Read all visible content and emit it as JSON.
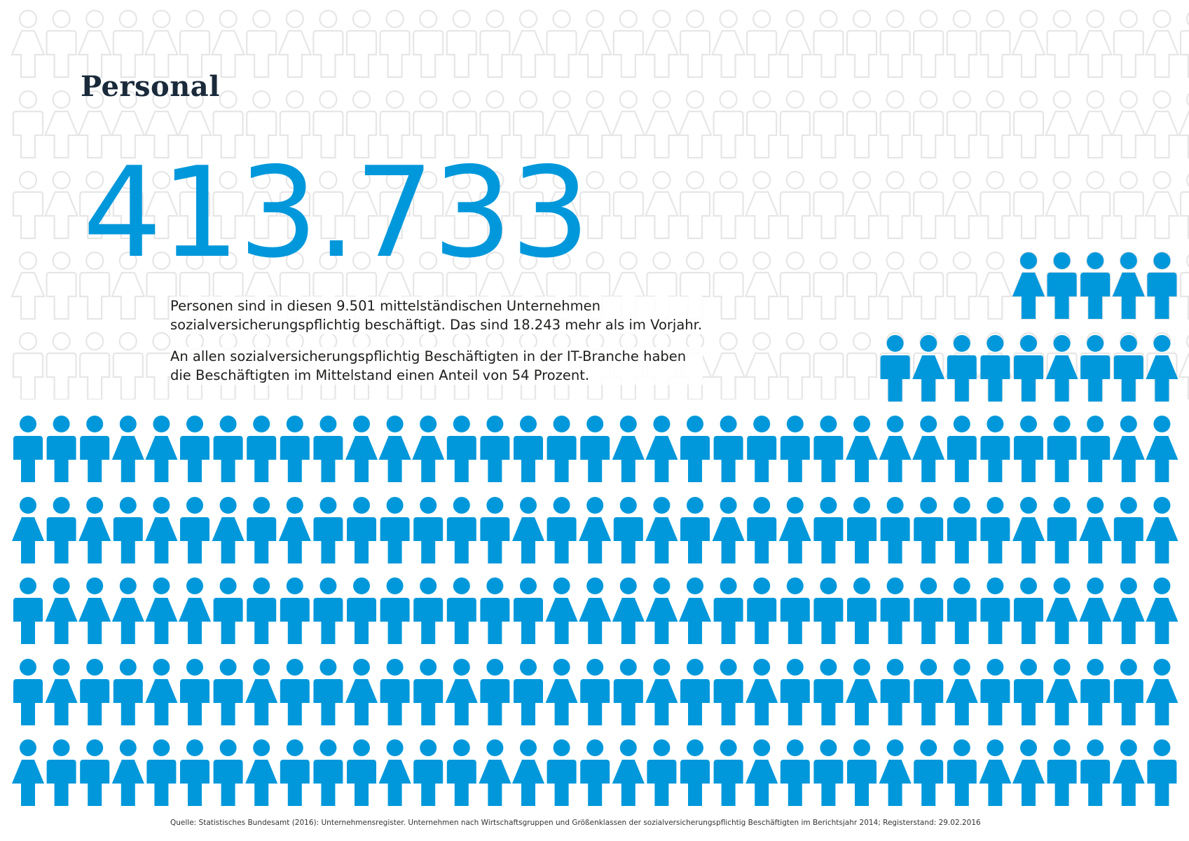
{
  "title": "Personal",
  "headline_number": "413.733",
  "paragraph_1": "Personen sind in diesen 9.501 mittelständischen Unternehmen sozialversicherungspflichtig beschäftigt. Das sind 18.243 mehr als im Vorjahr.",
  "paragraph_2": "An allen sozialversicherungspflichtig Beschäftigten in der IT-Branche haben die Beschäftigten im Mittelstand einen Anteil von 54 Prozent.",
  "source": "Quelle: Statistisches Bundesamt (2016): Unternehmensregister. Unternehmen nach Wirtschaftsgruppen und Größenklassen der sozialversicherungspflichtig Beschäftigten im Berichtsjahr 2014; Registerstand: 29.02.2016",
  "colors": {
    "accent": "#0098db",
    "pattern_outline": "#e6e6e6",
    "title": "#1a2a3a"
  },
  "icon": "person-icon"
}
